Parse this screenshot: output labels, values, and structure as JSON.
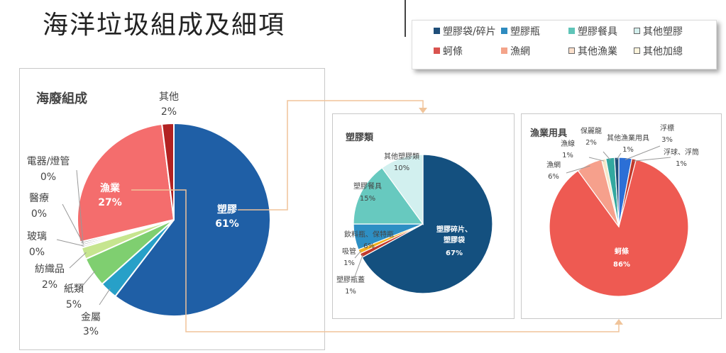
{
  "page": {
    "title": "海洋垃圾組成及細項"
  },
  "colors": {
    "connector": "#f0c49a"
  },
  "legend": [
    {
      "label": "塑膠袋/碎片",
      "color": "#1f4e79",
      "style": "solid"
    },
    {
      "label": "塑膠瓶",
      "color": "#2e8bbf",
      "style": "solid"
    },
    {
      "label": "塑膠餐具",
      "color": "#5fc4b8",
      "style": "solid"
    },
    {
      "label": "其他塑膠",
      "color": "#d4f0ee",
      "style": "outline"
    },
    {
      "label": "蚵條",
      "color": "#d9534f",
      "style": "solid"
    },
    {
      "label": "漁網",
      "color": "#f4a48a",
      "style": "solid"
    },
    {
      "label": "其他漁業",
      "color": "#fbe0cc",
      "style": "outline"
    },
    {
      "label": "其他加總",
      "color": "#fdf4dc",
      "style": "outline"
    }
  ],
  "chart_data": [
    {
      "type": "pie",
      "title": "海廢組成",
      "slices": [
        {
          "name": "塑膠",
          "value": 61,
          "label": "61%",
          "color": "#1f5fa6"
        },
        {
          "name": "金屬",
          "value": 3,
          "label": "3%",
          "color": "#27a0c8"
        },
        {
          "name": "紙類",
          "value": 5,
          "label": "5%",
          "color": "#7fcf70"
        },
        {
          "name": "紡織品",
          "value": 2,
          "label": "2%",
          "color": "#c6e58f"
        },
        {
          "name": "玻璃",
          "value": 0,
          "label": "0%",
          "color": "#d8d8d8"
        },
        {
          "name": "醫療",
          "value": 0,
          "label": "0%",
          "color": "#bdbdbd"
        },
        {
          "name": "電器/燈管",
          "value": 0,
          "label": "0%",
          "color": "#a0a0a0"
        },
        {
          "name": "漁業",
          "value": 27,
          "label": "27%",
          "color": "#f46d6d"
        },
        {
          "name": "其他",
          "value": 2,
          "label": "2%",
          "color": "#b22222"
        }
      ]
    },
    {
      "type": "pie",
      "title": "塑膠類",
      "slices": [
        {
          "name": "塑膠碎片、塑膠袋",
          "value": 67,
          "label": "67%",
          "color": "#14507f"
        },
        {
          "name": "塑膠瓶蓋",
          "value": 1,
          "label": "1%",
          "color": "#c0392b"
        },
        {
          "name": "吸管",
          "value": 1,
          "label": "1%",
          "color": "#f2b01e"
        },
        {
          "name": "飲料瓶、保特瓶",
          "value": 6,
          "label": "6%",
          "color": "#2d8fc4"
        },
        {
          "name": "塑膠餐具",
          "value": 15,
          "label": "15%",
          "color": "#67c9bf"
        },
        {
          "name": "其他塑膠類",
          "value": 10,
          "label": "10%",
          "color": "#d2f0ef"
        }
      ]
    },
    {
      "type": "pie",
      "title": "漁業用具",
      "slices": [
        {
          "name": "浮標",
          "value": 3,
          "label": "3%",
          "color": "#2b6fd6"
        },
        {
          "name": "浮球、浮筒",
          "value": 1,
          "label": "1%",
          "color": "#c0392b"
        },
        {
          "name": "蚵條",
          "value": 86,
          "label": "86%",
          "color": "#ee5a52"
        },
        {
          "name": "漁網",
          "value": 6,
          "label": "6%",
          "color": "#f6a08c"
        },
        {
          "name": "漁線",
          "value": 1,
          "label": "1%",
          "color": "#f6e7c8"
        },
        {
          "name": "保麗龍",
          "value": 2,
          "label": "2%",
          "color": "#33a89f"
        },
        {
          "name": "其他漁業用具",
          "value": 1,
          "label": "1%",
          "color": "#1f4e79"
        }
      ]
    }
  ]
}
